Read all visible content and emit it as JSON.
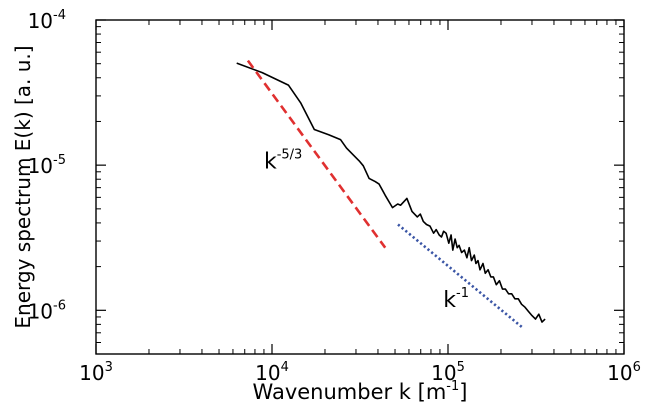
{
  "chart_data": {
    "type": "line",
    "xscale": "log",
    "yscale": "log",
    "xlim": [
      1000,
      1000000
    ],
    "ylim": [
      5e-07,
      0.0001
    ],
    "grid": false,
    "xlabel": "Wavenumber k [m",
    "xlabel_sup": "-1",
    "xlabel_end": "]",
    "ylabel": "Energy spectrum E(k) [a. u.]",
    "xticks": [
      {
        "value": 1000,
        "base": "10",
        "exp": "3"
      },
      {
        "value": 10000,
        "base": "10",
        "exp": "4"
      },
      {
        "value": 100000,
        "base": "10",
        "exp": "5"
      },
      {
        "value": 1000000,
        "base": "10",
        "exp": "6"
      }
    ],
    "yticks": [
      {
        "value": 1e-06,
        "base": "10",
        "exp": "-6"
      },
      {
        "value": 1e-05,
        "base": "10",
        "exp": "-5"
      },
      {
        "value": 0.0001,
        "base": "10",
        "exp": "-4"
      }
    ],
    "series": [
      {
        "style": "solid",
        "color": "#000000",
        "x": [
          6300,
          8800,
          12400,
          14600,
          17400,
          21000,
          24500,
          26500,
          31300,
          33000,
          35600,
          38600,
          40600,
          44000,
          48400,
          51800,
          53800,
          58400,
          62400,
          66900,
          69600,
          72400,
          75500,
          79000,
          82800,
          85700,
          89100,
          91900,
          94400,
          97500,
          101000,
          104200,
          106500,
          109700,
          112800,
          115700,
          119400,
          124000,
          128000,
          132000,
          136000,
          141000,
          144000,
          148000,
          152000,
          158000,
          163000,
          169000,
          175000,
          181000,
          188000,
          196000,
          204000,
          212000,
          221000,
          230000,
          240000,
          251000,
          262000,
          274000,
          287000,
          300000,
          314000,
          328000,
          342000,
          356000
        ],
        "y": [
          5.05e-05,
          4.34e-05,
          3.56e-05,
          2.67e-05,
          1.76e-05,
          1.62e-05,
          1.5e-05,
          1.31e-05,
          1.07e-05,
          9.9e-06,
          8.1e-06,
          7.7e-06,
          7.4e-06,
          6.2e-06,
          5.1e-06,
          5.4e-06,
          5.3e-06,
          5.9e-06,
          4.8e-06,
          4.4e-06,
          4.6e-06,
          4.1e-06,
          3.9e-06,
          3.8e-06,
          3.4e-06,
          3.6e-06,
          3.3e-06,
          3.2e-06,
          3.5e-06,
          3.4e-06,
          2.9e-06,
          3.3e-06,
          2.6e-06,
          3.1e-06,
          2.7e-06,
          2.8e-06,
          2.5e-06,
          2.6e-06,
          2.3e-06,
          2.7e-06,
          2.2e-06,
          2.4e-06,
          2.1e-06,
          2.2e-06,
          1.9e-06,
          2.1e-06,
          1.8e-06,
          1.9e-06,
          1.7e-06,
          1.7e-06,
          1.5e-06,
          1.6e-06,
          1.4e-06,
          1.4e-06,
          1.3e-06,
          1.3e-06,
          1.2e-06,
          1.2e-06,
          1.1e-06,
          1.05e-06,
          9.8e-07,
          9.2e-07,
          8.7e-07,
          9.4e-07,
          8.3e-07,
          8.7e-07
        ]
      },
      {
        "style": "dashed",
        "color": "#e03030",
        "x": [
          7300,
          44000
        ],
        "y": [
          5.25e-05,
          2.7e-06
        ]
      },
      {
        "style": "dotted",
        "color": "#3a55a5",
        "x": [
          52000,
          265000
        ],
        "y": [
          3.9e-06,
          7.6e-07
        ]
      }
    ],
    "annotations": [
      {
        "base": "k",
        "exp": "-5/3",
        "x": 9000,
        "y": 9.5e-06
      },
      {
        "base": "k",
        "exp": "-1",
        "x": 94000,
        "y": 1.05e-06
      }
    ]
  }
}
